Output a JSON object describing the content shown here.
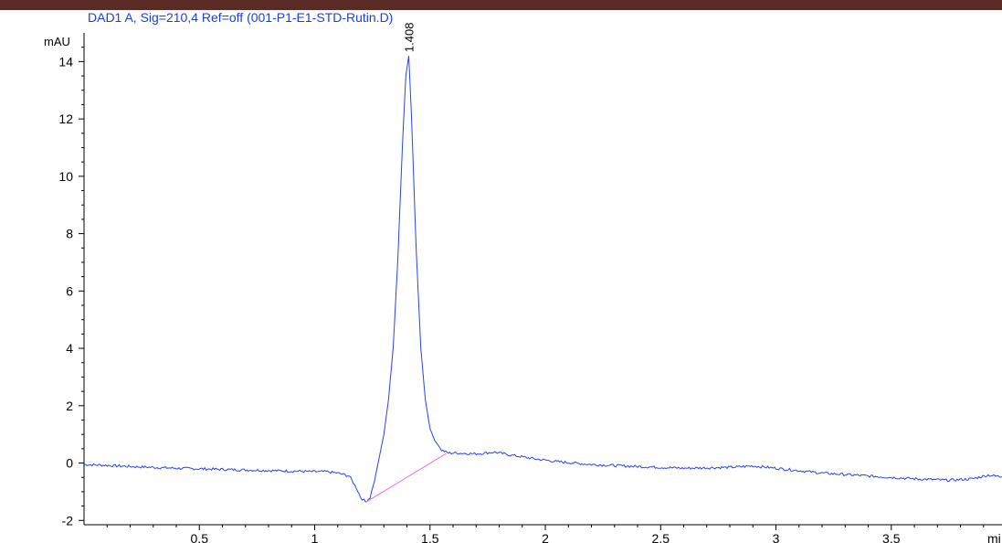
{
  "chart_data": {
    "type": "line",
    "title": "DAD1 A, Sig=210,4 Ref=off (001-P1-E1-STD-Rutin.D)",
    "ylabel": "mAU",
    "xlabel": "mi",
    "xlim": [
      0.0,
      3.98
    ],
    "ylim": [
      -2.15,
      15.0
    ],
    "grid": false,
    "colors": {
      "signal": "#2b44e6",
      "baseline": "#e870d8",
      "title": "#1a3fe0",
      "topbar": "#5a2a24"
    },
    "y_ticks": [
      -2,
      0,
      2,
      4,
      6,
      8,
      10,
      12,
      14
    ],
    "x_ticks": [
      "0.5",
      "1",
      "1.5",
      "2",
      "2.5",
      "3",
      "3.5"
    ],
    "series": [
      {
        "x": [
          0.0,
          0.1,
          0.2,
          0.3,
          0.4,
          0.5,
          0.6,
          0.7,
          0.8,
          0.9,
          1.0,
          1.05,
          1.1,
          1.15,
          1.18,
          1.2,
          1.22,
          1.24,
          1.26,
          1.28,
          1.3,
          1.32,
          1.34,
          1.36,
          1.38,
          1.395,
          1.408,
          1.42,
          1.44,
          1.46,
          1.48,
          1.5,
          1.52,
          1.55,
          1.58,
          1.62,
          1.7,
          1.78,
          1.85,
          1.95,
          2.05,
          2.2,
          2.4,
          2.6,
          2.8,
          2.9,
          3.0,
          3.2,
          3.4,
          3.6,
          3.75,
          3.85,
          3.92,
          3.98
        ],
        "y": [
          -0.05,
          -0.08,
          -0.12,
          -0.15,
          -0.18,
          -0.2,
          -0.22,
          -0.24,
          -0.26,
          -0.28,
          -0.3,
          -0.3,
          -0.35,
          -0.45,
          -0.85,
          -1.2,
          -1.35,
          -1.2,
          -0.6,
          0.2,
          1.0,
          2.2,
          4.0,
          7.0,
          11.0,
          13.5,
          14.2,
          12.0,
          7.5,
          4.0,
          2.2,
          1.2,
          0.8,
          0.45,
          0.35,
          0.35,
          0.32,
          0.38,
          0.28,
          0.15,
          0.05,
          -0.05,
          -0.12,
          -0.18,
          -0.15,
          -0.1,
          -0.18,
          -0.35,
          -0.45,
          -0.55,
          -0.6,
          -0.55,
          -0.42,
          -0.48
        ]
      }
    ],
    "baseline_segment": {
      "x": [
        1.22,
        1.57
      ],
      "y": [
        -1.37,
        0.33
      ]
    },
    "annotations": [
      {
        "text": "1.408",
        "x": 1.408,
        "y": 14.2
      }
    ]
  }
}
